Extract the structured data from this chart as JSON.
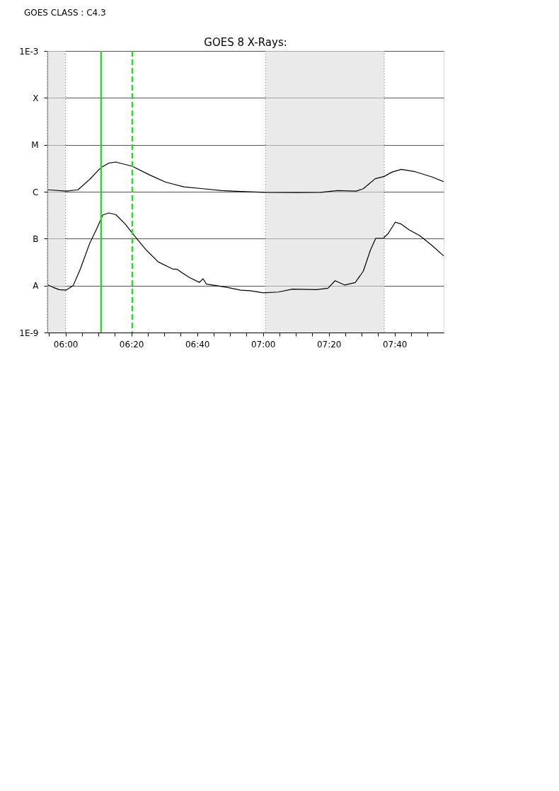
{
  "chart_data": {
    "type": "line",
    "title": "GOES 8 X-Rays:",
    "annotations": [
      "GOES CLASS : C4.3"
    ],
    "x": [
      5.91,
      6.003,
      6.063,
      6.123,
      6.18,
      6.218,
      6.254,
      6.338,
      6.421,
      6.505,
      6.6,
      6.696,
      6.791,
      6.887,
      7.006,
      7.174,
      7.293,
      7.377,
      7.472,
      7.508,
      7.568,
      7.614,
      7.652,
      7.7,
      7.771,
      7.855,
      7.915
    ],
    "series": [
      {
        "color": "#000000",
        "values": [
          1.1e-06,
          1.03e-06,
          1.1e-06,
          1.85e-06,
          3.29e-06,
          4.05e-06,
          4.3e-06,
          3.49e-06,
          2.33e-06,
          1.61e-06,
          1.27e-06,
          1.16e-06,
          1.06e-06,
          1.01e-06,
          9.7e-07,
          9.6e-07,
          9.7e-07,
          1.06e-06,
          1.03e-06,
          1.16e-06,
          1.89e-06,
          2.12e-06,
          2.61e-06,
          3e-06,
          2.67e-06,
          2.07e-06,
          1.64e-06
        ]
      },
      {
        "color": "#000000",
        "x": [
          5.91,
          5.937,
          5.967,
          6.003,
          6.039,
          6.075,
          6.123,
          6.158,
          6.188,
          6.218,
          6.254,
          6.302,
          6.349,
          6.409,
          6.469,
          6.541,
          6.565,
          6.624,
          6.678,
          6.696,
          6.714,
          6.768,
          6.827,
          6.887,
          6.935,
          7.001,
          7.078,
          7.15,
          7.27,
          7.329,
          7.365,
          7.413,
          7.467,
          7.508,
          7.544,
          7.571,
          7.61,
          7.634,
          7.67,
          7.7,
          7.741,
          7.795,
          7.855,
          7.915
        ],
        "values": [
          1.03e-08,
          9.2e-09,
          8.2e-09,
          8e-09,
          1.01e-08,
          2.27e-08,
          8.1e-08,
          1.63e-07,
          3.18e-07,
          3.53e-07,
          3.26e-07,
          2.05e-07,
          1.15e-07,
          5.7e-08,
          3.2e-08,
          2.27e-08,
          2.22e-08,
          1.51e-08,
          1.17e-08,
          1.4e-08,
          1.07e-08,
          9.9e-09,
          9e-09,
          8e-09,
          7.8e-09,
          7e-09,
          7.3e-09,
          8.4e-09,
          8.2e-09,
          8.8e-09,
          1.27e-08,
          1.03e-08,
          1.16e-08,
          2.03e-08,
          5.7e-08,
          1.02e-07,
          1.02e-07,
          1.29e-07,
          2.25e-07,
          2.05e-07,
          1.53e-07,
          1.15e-07,
          7.2e-08,
          4.3e-08
        ]
      }
    ],
    "xlim": [
      5.908,
      7.915
    ],
    "xticks": [
      {
        "value": 5.9167,
        "label": null
      },
      {
        "value": 6,
        "label": "06:00"
      },
      {
        "value": 6.0833,
        "label": null
      },
      {
        "value": 6.1667,
        "label": null
      },
      {
        "value": 6.25,
        "label": null
      },
      {
        "value": 6.3333,
        "label": "06:20"
      },
      {
        "value": 6.4167,
        "label": null
      },
      {
        "value": 6.5,
        "label": null
      },
      {
        "value": 6.5833,
        "label": null
      },
      {
        "value": 6.6667,
        "label": "06:40"
      },
      {
        "value": 6.75,
        "label": null
      },
      {
        "value": 6.8333,
        "label": null
      },
      {
        "value": 6.9167,
        "label": null
      },
      {
        "value": 7,
        "label": "07:00"
      },
      {
        "value": 7.0833,
        "label": null
      },
      {
        "value": 7.1667,
        "label": null
      },
      {
        "value": 7.25,
        "label": null
      },
      {
        "value": 7.3333,
        "label": "07:20"
      },
      {
        "value": 7.4167,
        "label": null
      },
      {
        "value": 7.5,
        "label": null
      },
      {
        "value": 7.5833,
        "label": null
      },
      {
        "value": 7.6667,
        "label": "07:40"
      },
      {
        "value": 7.75,
        "label": null
      },
      {
        "value": 7.8333,
        "label": null
      }
    ],
    "ylim": [
      1e-09,
      0.001
    ],
    "yticks": [
      {
        "value": 1e-09,
        "label": "1E-9"
      },
      {
        "value": 1e-08,
        "label": "A"
      },
      {
        "value": 1e-07,
        "label": "B"
      },
      {
        "value": 1e-06,
        "label": "C"
      },
      {
        "value": 1e-05,
        "label": "M"
      },
      {
        "value": 0.0001,
        "label": "X"
      },
      {
        "value": 0.001,
        "label": "1E-3"
      }
    ],
    "log": "y",
    "grid": "y",
    "ref_lines": [
      {
        "axis": "x",
        "value": 6.18,
        "color": "#22dd22",
        "line_style": "solid"
      },
      {
        "axis": "x",
        "value": 6.338,
        "color": "#22dd22",
        "line_style": "dashed"
      }
    ],
    "bands": [
      {
        "axis": "x",
        "from": 5.908,
        "to": 6.0,
        "color": "#dcdcdc"
      },
      {
        "axis": "x",
        "from": 7.013,
        "to": 7.614,
        "color": "#dcdcdc"
      }
    ]
  }
}
